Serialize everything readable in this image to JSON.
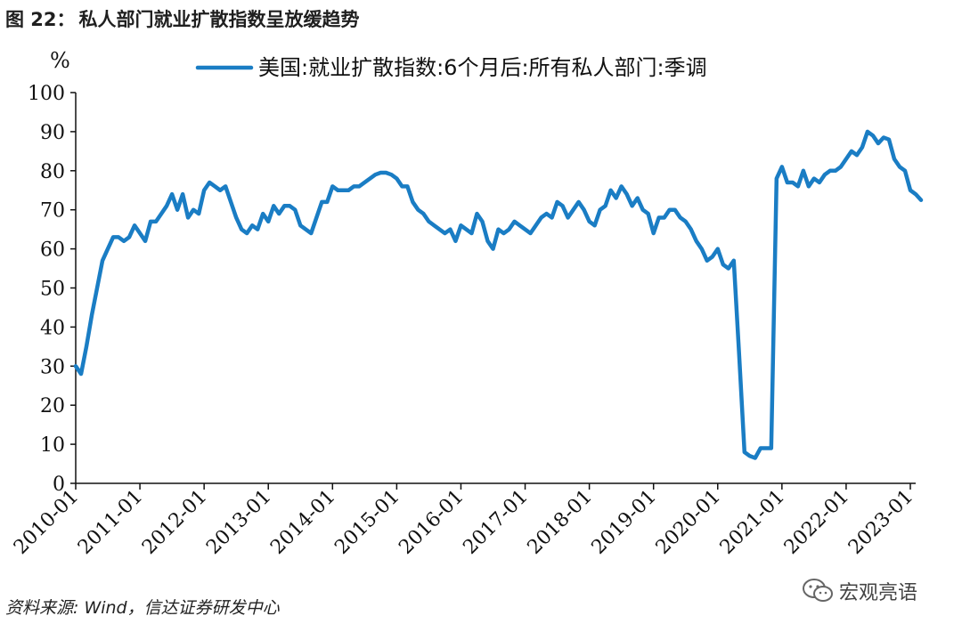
{
  "figure": {
    "number": "图 22：",
    "title": "私人部门就业扩散指数呈放缓趋势"
  },
  "source": "资料来源: Wind，信达证券研发中心",
  "watermark": "宏观亮语",
  "colors": {
    "series": "#1a7dc4",
    "axis": "#111111"
  },
  "chart_data": {
    "type": "line",
    "ylabel": "%",
    "ylim": [
      0,
      100
    ],
    "yticks": [
      0,
      10,
      20,
      30,
      40,
      50,
      60,
      70,
      80,
      90,
      100
    ],
    "xlim": [
      "2010-01",
      "2023-02"
    ],
    "xticks": [
      "2010-01",
      "2011-01",
      "2012-01",
      "2013-01",
      "2014-01",
      "2015-01",
      "2016-01",
      "2017-01",
      "2018-01",
      "2019-01",
      "2020-01",
      "2021-01",
      "2022-01",
      "2023-01"
    ],
    "grid": false,
    "legend_position": "top",
    "series": [
      {
        "name": "美国:就业扩散指数:6个月后:所有私人部门:季调",
        "points": [
          [
            "2010-01",
            30
          ],
          [
            "2010-02",
            28
          ],
          [
            "2010-03",
            35
          ],
          [
            "2010-04",
            43
          ],
          [
            "2010-05",
            50
          ],
          [
            "2010-06",
            57
          ],
          [
            "2010-07",
            60
          ],
          [
            "2010-08",
            63
          ],
          [
            "2010-09",
            63
          ],
          [
            "2010-10",
            62
          ],
          [
            "2010-11",
            63
          ],
          [
            "2010-12",
            66
          ],
          [
            "2011-01",
            64
          ],
          [
            "2011-02",
            62
          ],
          [
            "2011-03",
            67
          ],
          [
            "2011-04",
            67
          ],
          [
            "2011-05",
            69
          ],
          [
            "2011-06",
            71
          ],
          [
            "2011-07",
            74
          ],
          [
            "2011-08",
            70
          ],
          [
            "2011-09",
            74
          ],
          [
            "2011-10",
            68
          ],
          [
            "2011-11",
            70
          ],
          [
            "2011-12",
            69
          ],
          [
            "2012-01",
            75
          ],
          [
            "2012-02",
            77
          ],
          [
            "2012-03",
            76
          ],
          [
            "2012-04",
            75
          ],
          [
            "2012-05",
            76
          ],
          [
            "2012-06",
            72
          ],
          [
            "2012-07",
            68
          ],
          [
            "2012-08",
            65
          ],
          [
            "2012-09",
            64
          ],
          [
            "2012-10",
            66
          ],
          [
            "2012-11",
            65
          ],
          [
            "2012-12",
            69
          ],
          [
            "2013-01",
            67
          ],
          [
            "2013-02",
            71
          ],
          [
            "2013-03",
            69
          ],
          [
            "2013-04",
            71
          ],
          [
            "2013-05",
            71
          ],
          [
            "2013-06",
            70
          ],
          [
            "2013-07",
            66
          ],
          [
            "2013-08",
            65
          ],
          [
            "2013-09",
            64
          ],
          [
            "2013-10",
            68
          ],
          [
            "2013-11",
            72
          ],
          [
            "2013-12",
            72
          ],
          [
            "2014-01",
            76
          ],
          [
            "2014-02",
            75
          ],
          [
            "2014-03",
            75
          ],
          [
            "2014-04",
            75
          ],
          [
            "2014-05",
            76
          ],
          [
            "2014-06",
            76
          ],
          [
            "2014-07",
            77
          ],
          [
            "2014-08",
            78
          ],
          [
            "2014-09",
            79
          ],
          [
            "2014-10",
            79.5
          ],
          [
            "2014-11",
            79.5
          ],
          [
            "2014-12",
            79
          ],
          [
            "2015-01",
            78
          ],
          [
            "2015-02",
            76
          ],
          [
            "2015-03",
            76
          ],
          [
            "2015-04",
            72
          ],
          [
            "2015-05",
            70
          ],
          [
            "2015-06",
            69
          ],
          [
            "2015-07",
            67
          ],
          [
            "2015-08",
            66
          ],
          [
            "2015-09",
            65
          ],
          [
            "2015-10",
            64
          ],
          [
            "2015-11",
            65
          ],
          [
            "2015-12",
            62
          ],
          [
            "2016-01",
            66
          ],
          [
            "2016-02",
            65
          ],
          [
            "2016-03",
            64
          ],
          [
            "2016-04",
            69
          ],
          [
            "2016-05",
            67
          ],
          [
            "2016-06",
            62
          ],
          [
            "2016-07",
            60
          ],
          [
            "2016-08",
            65
          ],
          [
            "2016-09",
            64
          ],
          [
            "2016-10",
            65
          ],
          [
            "2016-11",
            67
          ],
          [
            "2016-12",
            66
          ],
          [
            "2017-01",
            65
          ],
          [
            "2017-02",
            64
          ],
          [
            "2017-03",
            66
          ],
          [
            "2017-04",
            68
          ],
          [
            "2017-05",
            69
          ],
          [
            "2017-06",
            68
          ],
          [
            "2017-07",
            72
          ],
          [
            "2017-08",
            71
          ],
          [
            "2017-09",
            68
          ],
          [
            "2017-10",
            70
          ],
          [
            "2017-11",
            72
          ],
          [
            "2017-12",
            70
          ],
          [
            "2018-01",
            67
          ],
          [
            "2018-02",
            66
          ],
          [
            "2018-03",
            70
          ],
          [
            "2018-04",
            71
          ],
          [
            "2018-05",
            75
          ],
          [
            "2018-06",
            73
          ],
          [
            "2018-07",
            76
          ],
          [
            "2018-08",
            74
          ],
          [
            "2018-09",
            71
          ],
          [
            "2018-10",
            73
          ],
          [
            "2018-11",
            70
          ],
          [
            "2018-12",
            69
          ],
          [
            "2019-01",
            64
          ],
          [
            "2019-02",
            68
          ],
          [
            "2019-03",
            68
          ],
          [
            "2019-04",
            70
          ],
          [
            "2019-05",
            70
          ],
          [
            "2019-06",
            68
          ],
          [
            "2019-07",
            67
          ],
          [
            "2019-08",
            65
          ],
          [
            "2019-09",
            62
          ],
          [
            "2019-10",
            60
          ],
          [
            "2019-11",
            57
          ],
          [
            "2019-12",
            58
          ],
          [
            "2020-01",
            60
          ],
          [
            "2020-02",
            56
          ],
          [
            "2020-03",
            55
          ],
          [
            "2020-04",
            57
          ],
          [
            "2020-05",
            33
          ],
          [
            "2020-06",
            8
          ],
          [
            "2020-07",
            7
          ],
          [
            "2020-08",
            6.5
          ],
          [
            "2020-09",
            9
          ],
          [
            "2020-10",
            9
          ],
          [
            "2020-11",
            9
          ],
          [
            "2020-12",
            78
          ],
          [
            "2021-01",
            81
          ],
          [
            "2021-02",
            77
          ],
          [
            "2021-03",
            77
          ],
          [
            "2021-04",
            76
          ],
          [
            "2021-05",
            80
          ],
          [
            "2021-06",
            76
          ],
          [
            "2021-07",
            78
          ],
          [
            "2021-08",
            77
          ],
          [
            "2021-09",
            79
          ],
          [
            "2021-10",
            80
          ],
          [
            "2021-11",
            80
          ],
          [
            "2021-12",
            81
          ],
          [
            "2022-01",
            83
          ],
          [
            "2022-02",
            85
          ],
          [
            "2022-03",
            84
          ],
          [
            "2022-04",
            86
          ],
          [
            "2022-05",
            90
          ],
          [
            "2022-06",
            89
          ],
          [
            "2022-07",
            87
          ],
          [
            "2022-08",
            88.5
          ],
          [
            "2022-09",
            88
          ],
          [
            "2022-10",
            83
          ],
          [
            "2022-11",
            81
          ],
          [
            "2022-12",
            80
          ],
          [
            "2023-01",
            75
          ],
          [
            "2023-02",
            74
          ],
          [
            "2023-03",
            72.5
          ]
        ]
      }
    ]
  }
}
